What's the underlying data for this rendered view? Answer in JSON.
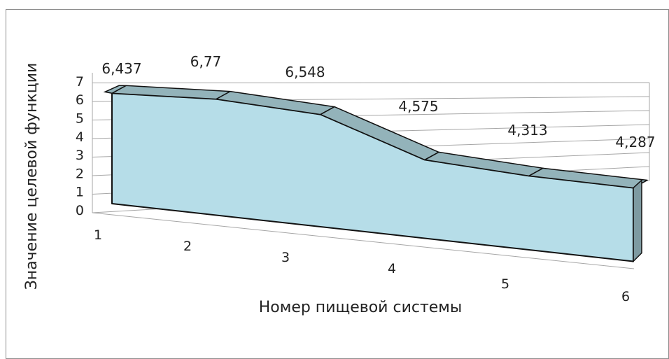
{
  "chart_data": {
    "type": "area",
    "view": "3d",
    "xlabel": "Номер пищевой системы",
    "ylabel": "Значение целевой функции",
    "categories": [
      "1",
      "2",
      "3",
      "4",
      "5",
      "6"
    ],
    "values": [
      6.437,
      6.77,
      6.548,
      4.575,
      4.313,
      4.287
    ],
    "data_labels": [
      "6,437",
      "6,77",
      "6,548",
      "4,575",
      "4,313",
      "4,287"
    ],
    "y_ticks": [
      "0",
      "1",
      "2",
      "3",
      "4",
      "5",
      "6",
      "7"
    ],
    "ylim": [
      0,
      7
    ],
    "grid": true,
    "legend": false,
    "colors": {
      "front": "#b6dde8",
      "top": "#93b3ba",
      "side": "#7e9aa1",
      "edge": "#111111",
      "grid": "#a6a6a6"
    }
  }
}
